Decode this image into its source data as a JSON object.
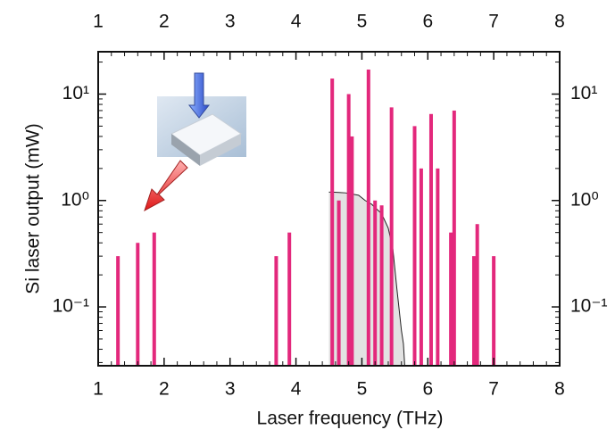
{
  "chart_data": {
    "type": "bar",
    "xlabel": "Laser frequency (THz)",
    "ylabel": "Si laser output (mW)",
    "log_y": true,
    "color": "#e3287c",
    "x": [
      1.3,
      1.6,
      1.85,
      3.7,
      3.9,
      4.55,
      4.65,
      4.8,
      4.85,
      5.1,
      5.2,
      5.3,
      5.45,
      5.8,
      5.9,
      6.05,
      6.15,
      6.35,
      6.4,
      6.7,
      6.75,
      7.0
    ],
    "values": [
      0.3,
      0.4,
      0.5,
      0.3,
      0.5,
      14,
      1.0,
      10,
      4,
      17,
      1.0,
      0.9,
      7.5,
      5,
      2,
      6.5,
      2,
      0.5,
      7,
      0.3,
      0.6,
      0.3
    ],
    "envelope": {
      "x": [
        4.5,
        4.55,
        4.75,
        4.95,
        5.05,
        5.15,
        5.3,
        5.4,
        5.47,
        5.53,
        5.6,
        5.63,
        5.65
      ],
      "values": [
        1.2,
        1.2,
        1.18,
        1.12,
        1.0,
        0.92,
        0.75,
        0.55,
        0.35,
        0.15,
        0.06,
        0.045,
        0.028
      ]
    },
    "xlim": [
      1,
      8
    ],
    "xticks": [
      1,
      2,
      3,
      4,
      5,
      6,
      7,
      8
    ],
    "ylim": [
      0.028,
      25
    ],
    "yticks": [
      {
        "value": 0.1,
        "label": "10⁻¹"
      },
      {
        "value": 1,
        "label": "10⁰"
      },
      {
        "value": 10,
        "label": "10¹"
      }
    ]
  }
}
